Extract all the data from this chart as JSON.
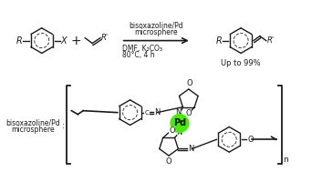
{
  "bg_color": "#ffffff",
  "line_color": "#1a1a1a",
  "pd_color": "#44ee00",
  "fig_width": 3.53,
  "fig_height": 1.89,
  "dpi": 100,
  "label_bisox_top": "bisoxazoline/Pd",
  "label_micro_top": "microsphere",
  "label_dmf": "DMF, K₂CO₃",
  "label_temp": "80°C, 4 h",
  "label_yield": "Up to 99%",
  "label_bottom_left1": "bisoxazoline/Pd",
  "label_bottom_left2": "microsphere",
  "bracket_n": "n"
}
